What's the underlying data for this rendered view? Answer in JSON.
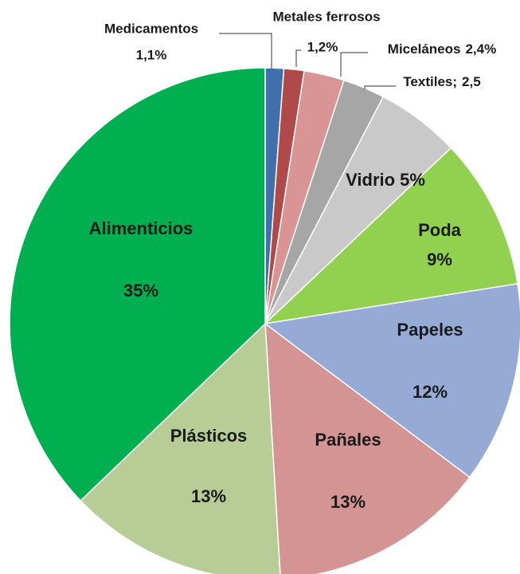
{
  "chart_data": {
    "type": "pie",
    "categories": [
      "Medicamentos",
      "Metales ferrosos",
      "Miceláneos",
      "Textiles;",
      "Vidrio",
      "Poda",
      "Papeles",
      "Pañales",
      "Plásticos",
      "Alimenticios"
    ],
    "values": [
      1.1,
      1.2,
      2.4,
      2.5,
      5,
      9,
      12,
      13,
      13,
      35
    ],
    "value_labels": [
      "1,1%",
      "1,2%",
      "2,4%",
      "2,5",
      "5%",
      "9%",
      "12%",
      "13%",
      "13%",
      "35%"
    ],
    "colors": [
      "#3f6fad",
      "#b04a4a",
      "#d99594",
      "#a6a6a6",
      "#c9c9c9",
      "#92d050",
      "#95abd5",
      "#d39493",
      "#b8cd96",
      "#00b050"
    ]
  }
}
